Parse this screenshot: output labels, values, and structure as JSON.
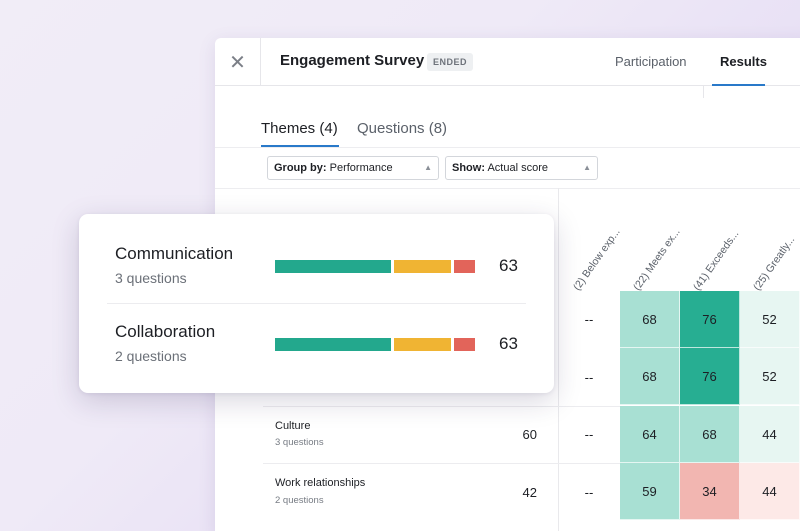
{
  "header": {
    "title": "Engagement Survey",
    "status": "ENDED",
    "tabs": [
      "Participation",
      "Results"
    ],
    "close_icon": "close-icon"
  },
  "subtabs": [
    "Themes (4)",
    "Questions (8)"
  ],
  "filters": {
    "group_label": "Group by:",
    "group_value": "Performance",
    "show_label": "Show:",
    "show_value": "Actual score"
  },
  "columns": [
    "(2) Below exp...",
    "(22) Meets ex...",
    "(41) Exceeds...",
    "(25) Greatly..."
  ],
  "colors": {
    "accent": "#2979c9",
    "bar_green": "#23a88d",
    "bar_yellow": "#f0b433",
    "bar_red": "#e2645a",
    "cell_light_teal": "#a8e0d3",
    "cell_dark_teal": "#27ae92",
    "cell_pale_teal": "#e7f6f2",
    "cell_light_red": "#f2b6b1",
    "cell_pale_red": "#fde9e7"
  },
  "rows": [
    {
      "name": "",
      "sub": "",
      "score": "",
      "dash": "--",
      "cells": [
        "68",
        "76",
        "52"
      ]
    },
    {
      "name": "",
      "sub": "",
      "score": "",
      "dash": "--",
      "cells": [
        "68",
        "76",
        "52"
      ]
    },
    {
      "name": "Culture",
      "sub": "3 questions",
      "score": "60",
      "dash": "--",
      "cells": [
        "64",
        "68",
        "44"
      ]
    },
    {
      "name": "Work relationships",
      "sub": "2 questions",
      "score": "42",
      "dash": "--",
      "cells": [
        "59",
        "34",
        "44"
      ]
    }
  ],
  "card": [
    {
      "title": "Communication",
      "sub": "3 questions",
      "score": "63",
      "bar": [
        0.55,
        0.27,
        0.1
      ]
    },
    {
      "title": "Collaboration",
      "sub": "2 questions",
      "score": "63",
      "bar": [
        0.55,
        0.27,
        0.1
      ]
    }
  ]
}
